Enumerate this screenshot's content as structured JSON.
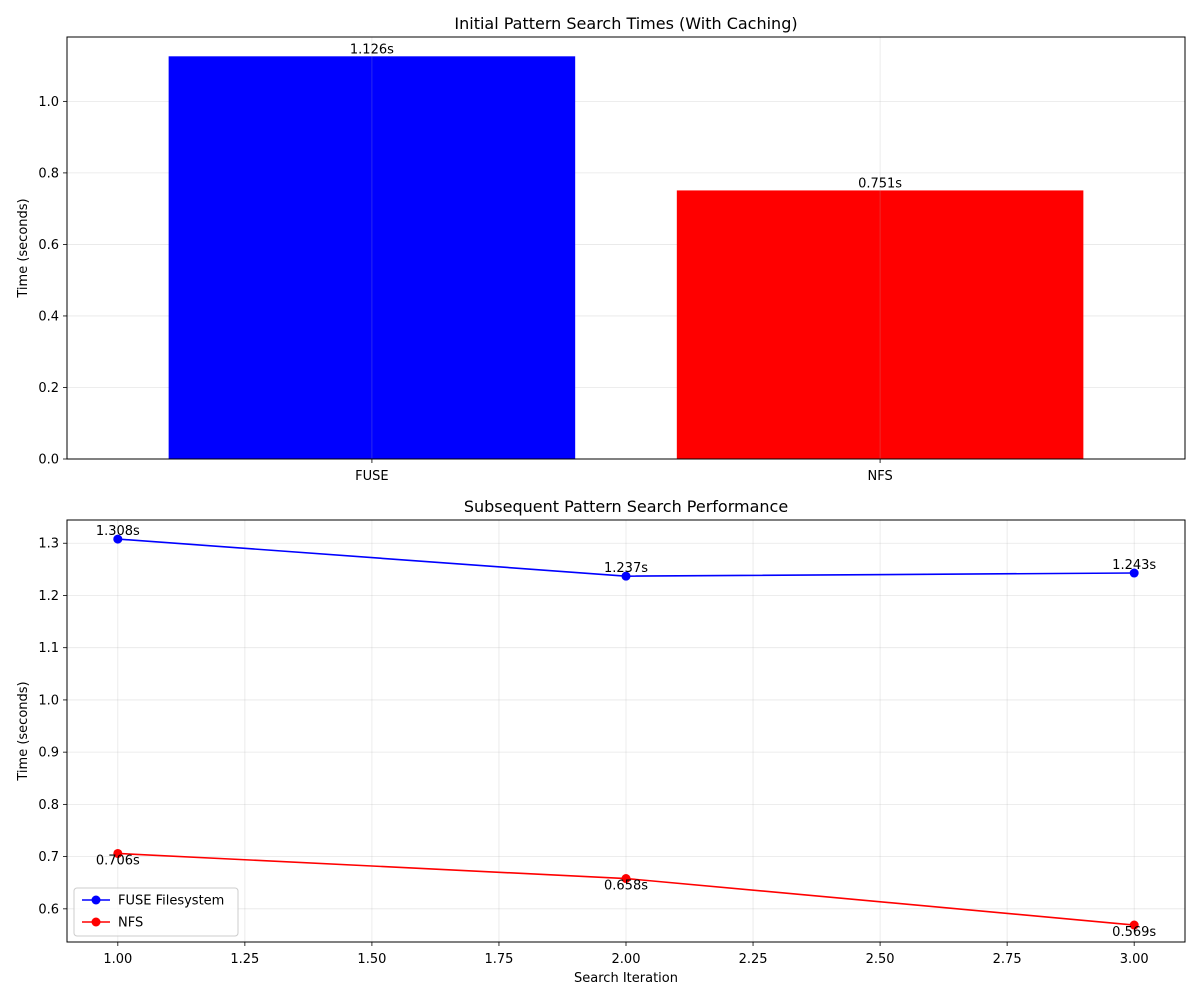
{
  "chart_data": [
    {
      "type": "bar",
      "title": "Initial Pattern Search Times (With Caching)",
      "xlabel": "",
      "ylabel": "Time (seconds)",
      "categories": [
        "FUSE",
        "NFS"
      ],
      "values": [
        1.126,
        0.751
      ],
      "value_labels": [
        "1.126s",
        "0.751s"
      ],
      "colors": [
        "#0000ff",
        "#ff0000"
      ],
      "ylim": [
        0,
        1.18
      ],
      "yticks": [
        0.0,
        0.2,
        0.4,
        0.6,
        0.8,
        1.0
      ],
      "ytick_labels": [
        "0.0",
        "0.2",
        "0.4",
        "0.6",
        "0.8",
        "1.0"
      ],
      "grid": true
    },
    {
      "type": "line",
      "title": "Subsequent Pattern Search Performance",
      "xlabel": "Search Iteration",
      "ylabel": "Time (seconds)",
      "xlim": [
        0.9,
        3.1
      ],
      "ylim": [
        0.5365,
        1.3445
      ],
      "xticks": [
        1.0,
        1.25,
        1.5,
        1.75,
        2.0,
        2.25,
        2.5,
        2.75,
        3.0
      ],
      "xtick_labels": [
        "1.00",
        "1.25",
        "1.50",
        "1.75",
        "2.00",
        "2.25",
        "2.50",
        "2.75",
        "3.00"
      ],
      "yticks": [
        0.6,
        0.7,
        0.8,
        0.9,
        1.0,
        1.1,
        1.2,
        1.3
      ],
      "ytick_labels": [
        "0.6",
        "0.7",
        "0.8",
        "0.9",
        "1.0",
        "1.1",
        "1.2",
        "1.3"
      ],
      "grid": true,
      "legend_position": "lower-left",
      "series": [
        {
          "name": "FUSE Filesystem",
          "color": "#0000ff",
          "x": [
            1,
            2,
            3
          ],
          "y": [
            1.308,
            1.237,
            1.243
          ],
          "labels": [
            "1.308s",
            "1.237s",
            "1.243s"
          ],
          "label_side": "above"
        },
        {
          "name": "NFS",
          "color": "#ff0000",
          "x": [
            1,
            2,
            3
          ],
          "y": [
            0.706,
            0.658,
            0.569
          ],
          "labels": [
            "0.706s",
            "0.658s",
            "0.569s"
          ],
          "label_side": "below"
        }
      ]
    }
  ]
}
